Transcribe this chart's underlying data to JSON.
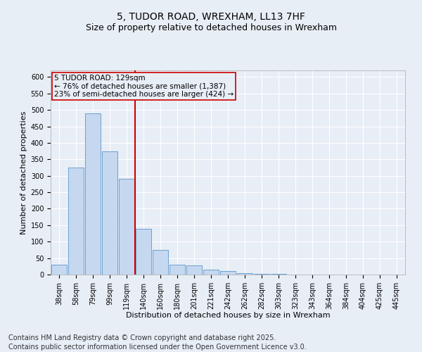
{
  "title": "5, TUDOR ROAD, WREXHAM, LL13 7HF",
  "subtitle": "Size of property relative to detached houses in Wrexham",
  "xlabel": "Distribution of detached houses by size in Wrexham",
  "ylabel": "Number of detached properties",
  "categories": [
    "38sqm",
    "58sqm",
    "79sqm",
    "99sqm",
    "119sqm",
    "140sqm",
    "160sqm",
    "180sqm",
    "201sqm",
    "221sqm",
    "242sqm",
    "262sqm",
    "282sqm",
    "303sqm",
    "323sqm",
    "343sqm",
    "364sqm",
    "384sqm",
    "404sqm",
    "425sqm",
    "445sqm"
  ],
  "values": [
    30,
    325,
    490,
    375,
    290,
    140,
    75,
    30,
    28,
    15,
    10,
    5,
    3,
    2,
    1,
    1,
    0,
    0,
    0,
    0,
    0
  ],
  "bar_color": "#c5d8ef",
  "bar_edge_color": "#5a96cc",
  "vline_x_index": 4,
  "vline_color": "#cc0000",
  "annotation_title": "5 TUDOR ROAD: 129sqm",
  "annotation_line2": "← 76% of detached houses are smaller (1,387)",
  "annotation_line3": "23% of semi-detached houses are larger (424) →",
  "annotation_box_color": "#cc0000",
  "ylim": [
    0,
    620
  ],
  "yticks": [
    0,
    50,
    100,
    150,
    200,
    250,
    300,
    350,
    400,
    450,
    500,
    550,
    600
  ],
  "footer_line1": "Contains HM Land Registry data © Crown copyright and database right 2025.",
  "footer_line2": "Contains public sector information licensed under the Open Government Licence v3.0.",
  "background_color": "#e8eef6",
  "grid_color": "#ffffff",
  "title_fontsize": 10,
  "subtitle_fontsize": 9,
  "axis_fontsize": 8,
  "tick_fontsize": 7,
  "footer_fontsize": 7,
  "annotation_fontsize": 7.5
}
